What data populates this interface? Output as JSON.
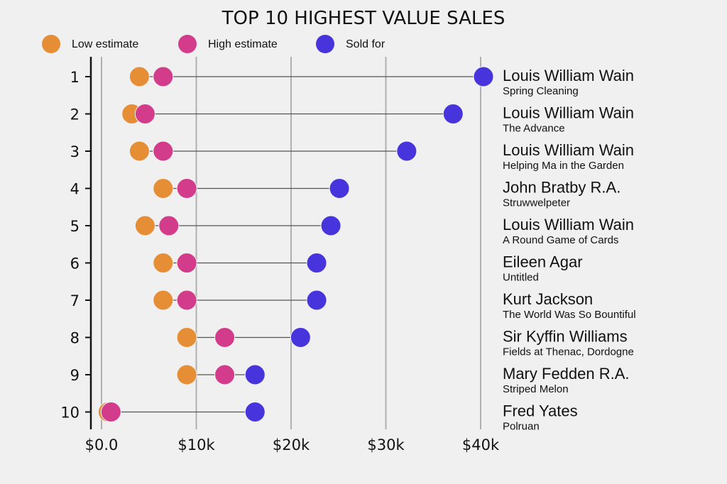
{
  "chart_data": {
    "type": "dumbbell",
    "title": "TOP 10 HIGHEST VALUE SALES",
    "xlabel": "",
    "ylabel": "",
    "xlim": [
      0,
      40000
    ],
    "x_ticks": [
      0,
      10000,
      20000,
      30000,
      40000
    ],
    "x_tick_labels": [
      "$0.0",
      "$10k",
      "$20k",
      "$30k",
      "$40k"
    ],
    "grid": "vertical",
    "legend_position": "top-left",
    "series": [
      {
        "name": "Low estimate",
        "key": "low",
        "color": "#e68e35"
      },
      {
        "name": "High estimate",
        "key": "high",
        "color": "#d23c8a"
      },
      {
        "name": "Sold for",
        "key": "sold",
        "color": "#4834dc"
      }
    ],
    "rows": [
      {
        "rank": "1",
        "artist": "Louis William Wain",
        "work": "Spring Cleaning",
        "low": 4000,
        "high": 6500,
        "sold": 40300
      },
      {
        "rank": "2",
        "artist": "Louis William Wain",
        "work": "The Advance",
        "low": 3200,
        "high": 4600,
        "sold": 37100
      },
      {
        "rank": "3",
        "artist": "Louis William Wain",
        "work": "Helping Ma in the Garden",
        "low": 4000,
        "high": 6500,
        "sold": 32200
      },
      {
        "rank": "4",
        "artist": "John Bratby R.A.",
        "work": "Struwwelpeter",
        "low": 6500,
        "high": 9000,
        "sold": 25100
      },
      {
        "rank": "5",
        "artist": "Louis William Wain",
        "work": "A Round Game of Cards",
        "low": 4600,
        "high": 7100,
        "sold": 24200
      },
      {
        "rank": "6",
        "artist": "Eileen Agar",
        "work": "Untitled",
        "low": 6500,
        "high": 9000,
        "sold": 22700
      },
      {
        "rank": "7",
        "artist": "Kurt Jackson",
        "work": "The World Was So Bountiful",
        "low": 6500,
        "high": 9000,
        "sold": 22700
      },
      {
        "rank": "8",
        "artist": "Sir Kyffin Williams",
        "work": "Fields at Thenac, Dordogne",
        "low": 9000,
        "high": 13000,
        "sold": 21000
      },
      {
        "rank": "9",
        "artist": "Mary Fedden R.A.",
        "work": "Striped Melon",
        "low": 9000,
        "high": 13000,
        "sold": 16200
      },
      {
        "rank": "10",
        "artist": "Fred Yates",
        "work": "Polruan",
        "low": 700,
        "high": 1000,
        "sold": 16200
      }
    ],
    "colors": {
      "background": "#f0f0f0",
      "grid": "#b0b0b0",
      "connector": "#555555",
      "axis": "#111111"
    }
  }
}
